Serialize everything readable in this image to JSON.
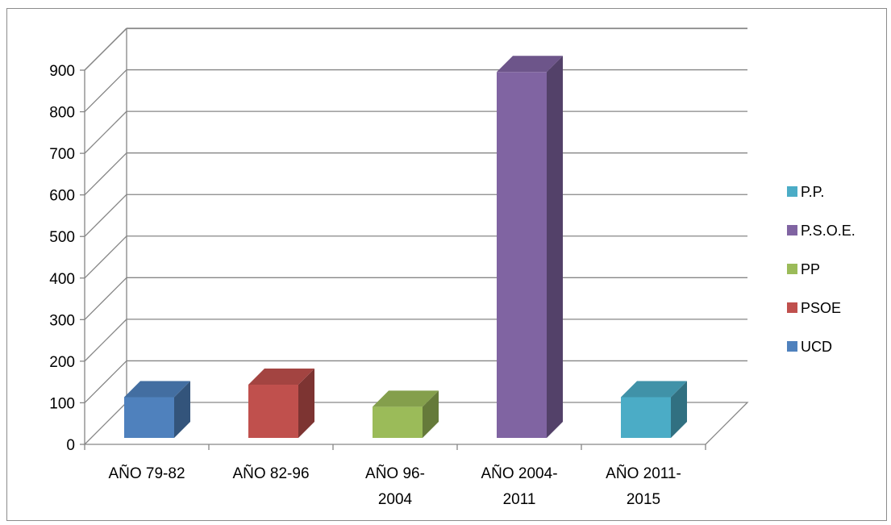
{
  "chart_data": {
    "type": "bar",
    "style": "3d-column",
    "categories": [
      [
        "AÑO 79-82"
      ],
      [
        "AÑO 82-96"
      ],
      [
        "AÑO 96-",
        "2004"
      ],
      [
        "AÑO 2004-",
        "2011"
      ],
      [
        "AÑO 2011-",
        "2015"
      ]
    ],
    "series": [
      {
        "name": "UCD",
        "color": "#4F81BD",
        "values": [
          98,
          null,
          null,
          null,
          null
        ]
      },
      {
        "name": "PSOE",
        "color": "#C0504D",
        "values": [
          null,
          128,
          null,
          null,
          null
        ]
      },
      {
        "name": "PP",
        "color": "#9BBB59",
        "values": [
          null,
          null,
          75,
          null,
          null
        ]
      },
      {
        "name": "P.S.O.E.",
        "color": "#8064A2",
        "values": [
          null,
          null,
          null,
          880,
          null
        ]
      },
      {
        "name": "P.P.",
        "color": "#4BACC6",
        "values": [
          null,
          null,
          null,
          null,
          98
        ]
      }
    ],
    "yticks": [
      0,
      100,
      200,
      300,
      400,
      500,
      600,
      700,
      800,
      900
    ],
    "ylim": [
      0,
      900
    ],
    "grid": true,
    "legend_position": "right",
    "legend_order": [
      "P.P.",
      "P.S.O.E.",
      "PP",
      "PSOE",
      "UCD"
    ],
    "title": "",
    "xlabel": "",
    "ylabel": ""
  }
}
